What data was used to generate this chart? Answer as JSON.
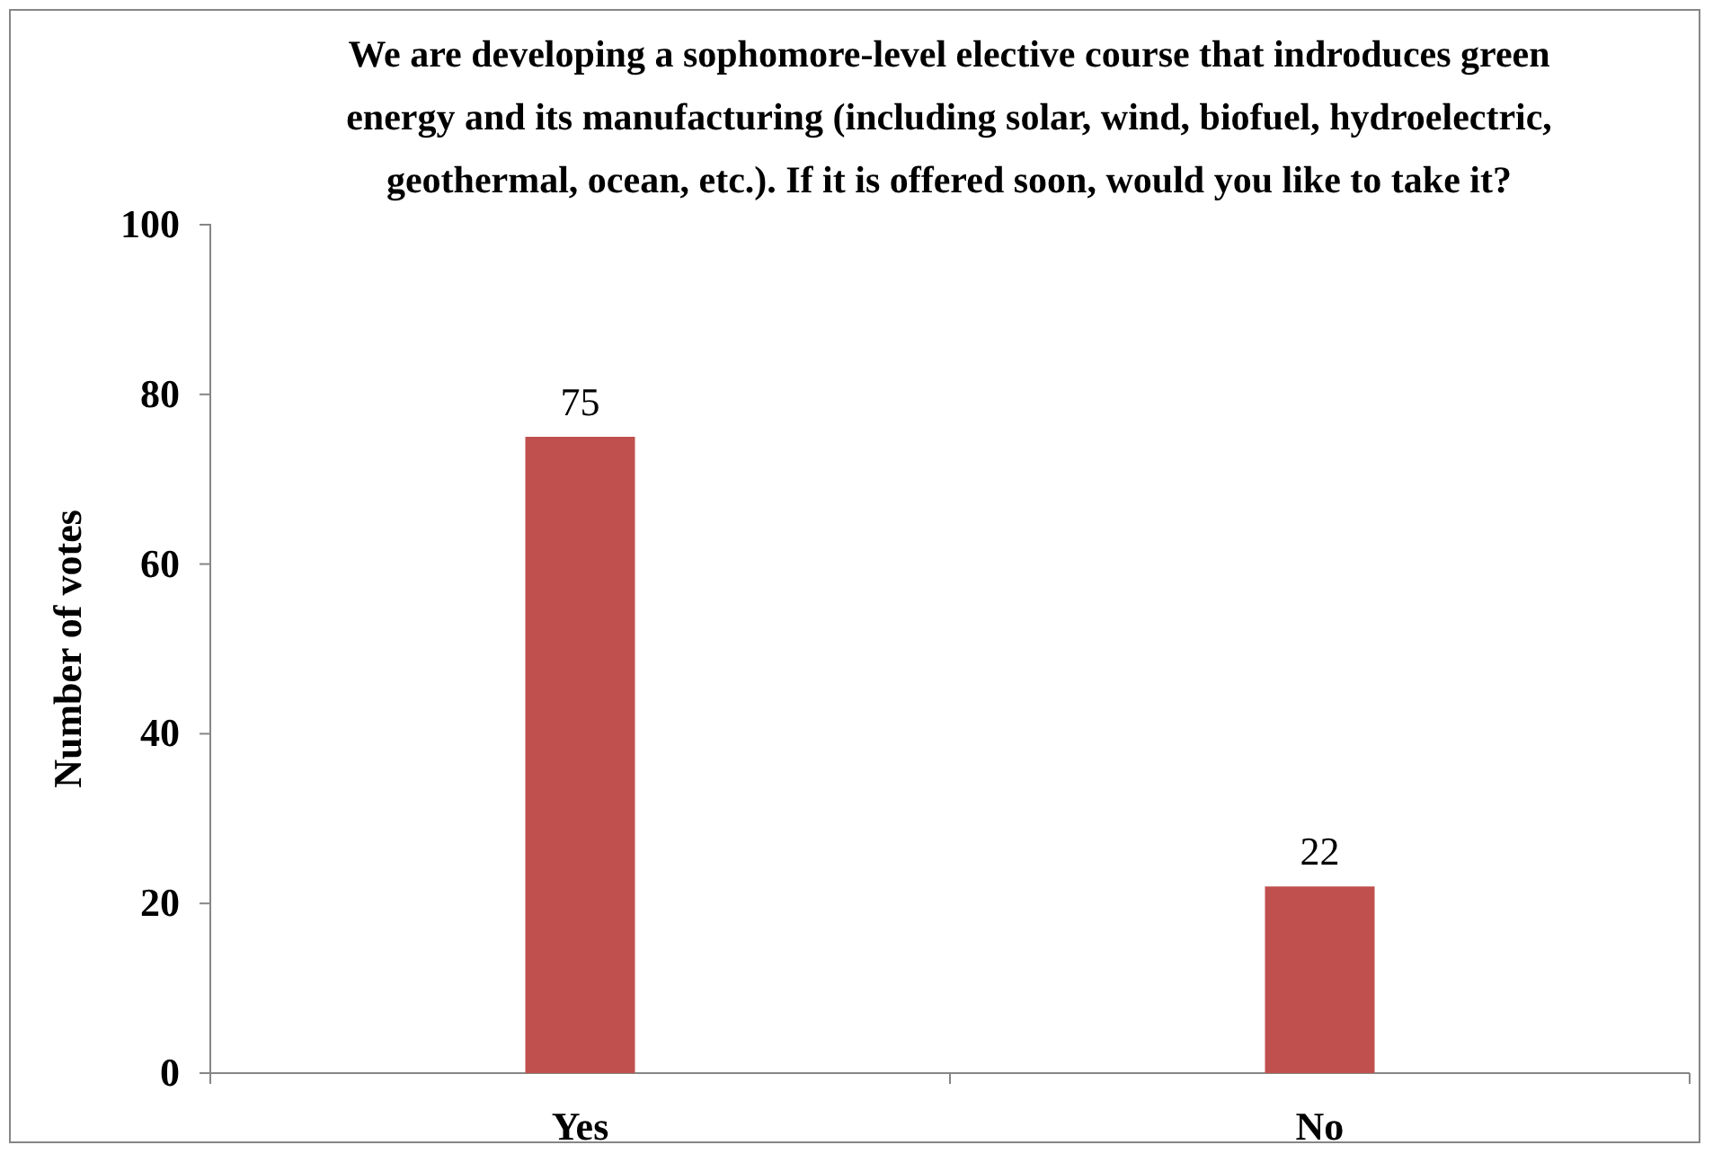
{
  "chart_data": {
    "type": "bar",
    "title": "We are developing a sophomore-level elective course that indroduces green energy and its manufacturing (including solar, wind, biofuel, hydroelectric, geothermal, ocean, etc.). If it is offered soon, would you like to take it?",
    "ylabel": "Number of votes",
    "categories": [
      "Yes",
      "No"
    ],
    "values": [
      75,
      22
    ],
    "color": "#c0504d",
    "ylim": [
      0,
      100
    ],
    "yticks": [
      0,
      20,
      40,
      60,
      80,
      100
    ],
    "data_labels": true,
    "grid": false
  }
}
